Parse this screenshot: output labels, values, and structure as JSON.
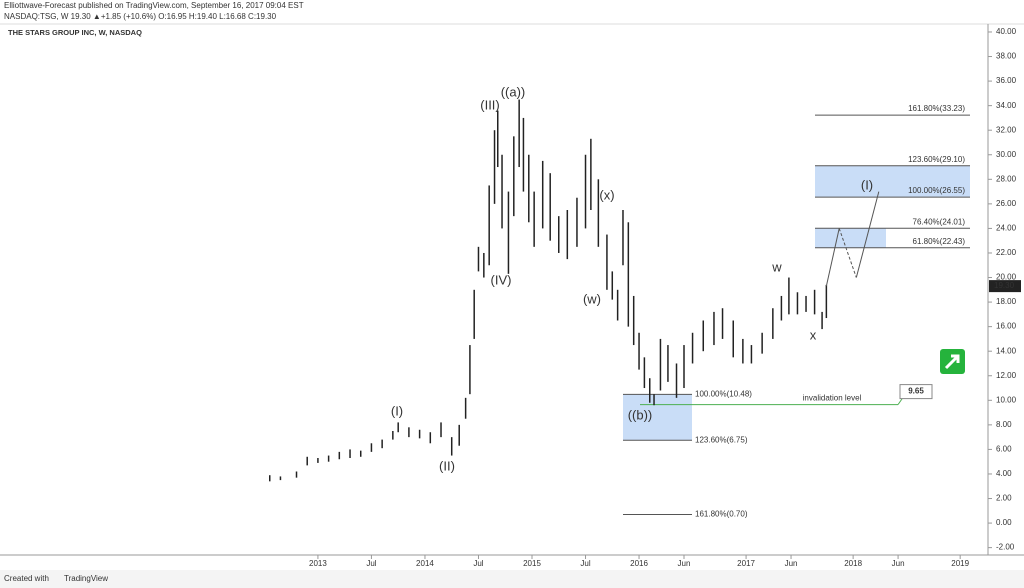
{
  "header": {
    "publisher": "Elliottwave-Forecast published on TradingView.com, September 16, 2017 09:04 EST",
    "quote": "NASDAQ:TSG, W  19.30 ▲+1.85 (+10.6%) O:16.95 H:19.40 L:16.68 C:19.30"
  },
  "chart_data": {
    "type": "ohlc",
    "title": "THE STARS GROUP INC, W, NASDAQ",
    "x": [
      2012.55,
      2012.65,
      2012.8,
      2012.9,
      2013.0,
      2013.1,
      2013.2,
      2013.3,
      2013.4,
      2013.5,
      2013.6,
      2013.7,
      2013.75,
      2013.85,
      2013.95,
      2014.05,
      2014.15,
      2014.25,
      2014.32,
      2014.38,
      2014.42,
      2014.46,
      2014.5,
      2014.55,
      2014.6,
      2014.65,
      2014.68,
      2014.72,
      2014.78,
      2014.83,
      2014.88,
      2014.92,
      2014.97,
      2015.02,
      2015.1,
      2015.17,
      2015.25,
      2015.33,
      2015.42,
      2015.5,
      2015.55,
      2015.62,
      2015.7,
      2015.75,
      2015.8,
      2015.85,
      2015.9,
      2015.95,
      2016.0,
      2016.05,
      2016.1,
      2016.14,
      2016.2,
      2016.27,
      2016.35,
      2016.42,
      2016.5,
      2016.6,
      2016.7,
      2016.78,
      2016.88,
      2016.97,
      2017.05,
      2017.15,
      2017.25,
      2017.33,
      2017.4,
      2017.48,
      2017.56,
      2017.64,
      2017.71,
      2017.75
    ],
    "series": [
      {
        "name": "high",
        "color": "#222222",
        "values": [
          3.9,
          3.8,
          4.2,
          5.4,
          5.3,
          5.5,
          5.8,
          6.0,
          5.9,
          6.5,
          6.8,
          7.5,
          8.2,
          7.8,
          7.6,
          7.4,
          8.2,
          7.0,
          8.0,
          10.2,
          14.5,
          19.0,
          22.5,
          22.0,
          27.5,
          32.0,
          33.6,
          30.0,
          27.0,
          31.5,
          34.5,
          33.0,
          30.0,
          27.0,
          29.5,
          28.5,
          25.0,
          25.5,
          26.5,
          30.0,
          31.3,
          28.0,
          23.5,
          20.5,
          19.0,
          25.5,
          24.5,
          18.5,
          15.5,
          13.5,
          11.8,
          10.5,
          15.0,
          14.5,
          13.0,
          14.5,
          15.5,
          16.5,
          17.2,
          17.5,
          16.5,
          15.0,
          14.5,
          15.5,
          17.5,
          18.5,
          20.0,
          18.8,
          18.5,
          19.0,
          17.2,
          19.4
        ]
      },
      {
        "name": "low",
        "color": "#222222",
        "values": [
          3.4,
          3.5,
          3.7,
          4.7,
          4.9,
          5.0,
          5.2,
          5.3,
          5.4,
          5.8,
          6.1,
          6.8,
          7.4,
          7.0,
          6.9,
          6.5,
          7.0,
          5.5,
          6.3,
          8.5,
          10.5,
          15.0,
          20.5,
          20.0,
          21.0,
          26.0,
          29.0,
          24.0,
          20.3,
          25.0,
          29.0,
          27.0,
          24.5,
          22.5,
          24.0,
          23.0,
          22.0,
          21.5,
          22.5,
          24.0,
          25.5,
          22.5,
          19.0,
          18.2,
          16.5,
          21.0,
          16.0,
          14.5,
          12.5,
          11.0,
          9.8,
          9.6,
          10.8,
          11.5,
          10.2,
          11.0,
          13.0,
          14.0,
          14.5,
          15.0,
          13.5,
          13.0,
          13.0,
          13.8,
          15.0,
          16.5,
          17.0,
          17.0,
          17.2,
          17.0,
          15.8,
          16.7
        ]
      }
    ],
    "projection": {
      "color": "#555555",
      "x": [
        2017.75,
        2017.87,
        2018.03,
        2018.24
      ],
      "values": [
        19.3,
        24.0,
        20.0,
        27.0
      ]
    },
    "last_price": {
      "value": 19.3,
      "label": "19.30"
    },
    "invalidation": {
      "value": 9.65,
      "label": "9.65",
      "text": "invalidation level",
      "color": "#4caf50"
    },
    "fib_upper": [
      {
        "value": 33.23,
        "label": "161.80%(33.23)"
      },
      {
        "value": 29.1,
        "label": "123.60%(29.10)"
      },
      {
        "value": 26.55,
        "label": "100.00%(26.55)"
      },
      {
        "value": 24.01,
        "label": "76.40%(24.01)"
      },
      {
        "value": 22.43,
        "label": "61.80%(22.43)"
      }
    ],
    "fib_lower": [
      {
        "value": 10.48,
        "label": "100.00%(10.48)"
      },
      {
        "value": 6.75,
        "label": "123.60%(6.75)"
      },
      {
        "value": 0.7,
        "label": "161.80%(0.70)"
      }
    ],
    "waves": [
      "(I)",
      "(II)",
      "(III)",
      "(IV)",
      "((a))",
      "(w)",
      "(x)",
      "((b))",
      "w",
      "x",
      "(I)"
    ],
    "xlim": [
      2010.03,
      2019.26
    ],
    "ylim": [
      -2.6,
      40.65
    ],
    "xticks": [
      2013,
      {
        "value": 2013.5,
        "label": "Jul"
      },
      2014,
      {
        "value": 2014.5,
        "label": "Jul"
      },
      2015,
      {
        "value": 2015.5,
        "label": "Jul"
      },
      2016,
      {
        "value": 2016.42,
        "label": "Jun"
      },
      2017,
      {
        "value": 2017.42,
        "label": "Jun"
      },
      2018,
      {
        "value": 2018.42,
        "label": "Jun"
      },
      2019
    ],
    "yticks": [
      {
        "value": 40,
        "label": "40.00"
      },
      {
        "value": 38,
        "label": "38.00"
      },
      {
        "value": 36,
        "label": "36.00"
      },
      {
        "value": 34,
        "label": "34.00"
      },
      {
        "value": 32,
        "label": "32.00"
      },
      {
        "value": 30,
        "label": "30.00"
      },
      {
        "value": 28,
        "label": "28.00"
      },
      {
        "value": 26,
        "label": "26.00"
      },
      {
        "value": 24,
        "label": "24.00"
      },
      {
        "value": 22,
        "label": "22.00"
      },
      {
        "value": 20,
        "label": "20.00"
      },
      {
        "value": 18,
        "label": "18.00"
      },
      {
        "value": 16,
        "label": "16.00"
      },
      {
        "value": 14,
        "label": "14.00"
      },
      {
        "value": 12,
        "label": "12.00"
      },
      {
        "value": 10,
        "label": "10.00"
      },
      {
        "value": 8,
        "label": "8.00"
      },
      {
        "value": 6,
        "label": "6.00"
      },
      {
        "value": 4,
        "label": "4.00"
      },
      {
        "value": 2,
        "label": "2.00"
      },
      {
        "value": 0,
        "label": "0.00"
      },
      {
        "value": -2,
        "label": "-2.00"
      }
    ]
  },
  "footer": {
    "created": "Created with",
    "brand": "TradingView"
  }
}
